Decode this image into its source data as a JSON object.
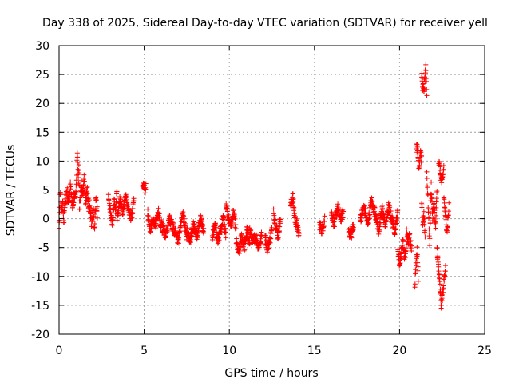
{
  "chart_data": {
    "type": "scatter",
    "title": "Day 338 of 2025, Sidereal Day-to-day VTEC variation (SDTVAR) for receiver yell",
    "xlabel": "GPS time / hours",
    "ylabel": "SDTVAR / TECUs",
    "xlim": [
      0,
      25
    ],
    "ylim": [
      -20,
      30
    ],
    "xticks": [
      0,
      5,
      10,
      15,
      20,
      25
    ],
    "yticks": [
      -20,
      -15,
      -10,
      -5,
      0,
      5,
      10,
      15,
      20,
      25,
      30
    ],
    "grid": true,
    "marker": "+",
    "color": "#ff0000",
    "segments": [
      {
        "x0": 0.0,
        "x1": 0.35,
        "y": [
          -2,
          5,
          1,
          3,
          -1,
          4
        ]
      },
      {
        "x0": 0.35,
        "x1": 1.0,
        "y": [
          2,
          5,
          3,
          6,
          2,
          4,
          5
        ]
      },
      {
        "x0": 1.0,
        "x1": 1.2,
        "y": [
          4,
          8,
          12,
          9,
          6,
          10,
          3
        ]
      },
      {
        "x0": 1.2,
        "x1": 1.75,
        "y": [
          2,
          6,
          4,
          7,
          3,
          5,
          2
        ]
      },
      {
        "x0": 1.75,
        "x1": 2.25,
        "y": [
          3,
          1,
          -1,
          2,
          -2,
          4,
          1
        ]
      },
      {
        "x0": 2.9,
        "x1": 3.4,
        "y": [
          4,
          2,
          0,
          -1,
          3,
          1,
          5
        ]
      },
      {
        "x0": 3.4,
        "x1": 4.4,
        "y": [
          0,
          3,
          1,
          4,
          2,
          0,
          3
        ]
      },
      {
        "x0": 4.9,
        "x1": 5.1,
        "y": [
          5,
          6,
          4.5,
          5.5
        ]
      },
      {
        "x0": 5.2,
        "x1": 6.0,
        "y": [
          1,
          -2,
          0,
          -1,
          1,
          -2
        ]
      },
      {
        "x0": 6.0,
        "x1": 7.5,
        "y": [
          -1,
          -3,
          0,
          -2,
          -4,
          1,
          -3
        ]
      },
      {
        "x0": 7.5,
        "x1": 8.5,
        "y": [
          -2,
          -4,
          -1,
          -3,
          0,
          -2
        ]
      },
      {
        "x0": 9.0,
        "x1": 9.8,
        "y": [
          -3,
          -1,
          -4,
          -2,
          0,
          -3
        ]
      },
      {
        "x0": 9.8,
        "x1": 10.4,
        "y": [
          2,
          0,
          -1,
          1,
          -2
        ]
      },
      {
        "x0": 10.4,
        "x1": 11.2,
        "y": [
          -4,
          -6,
          -3,
          -5,
          -2,
          -4
        ]
      },
      {
        "x0": 11.2,
        "x1": 11.9,
        "y": [
          -2,
          -4,
          -3,
          -5,
          -3
        ]
      },
      {
        "x0": 12.1,
        "x1": 12.5,
        "y": [
          -3,
          -5,
          -4,
          -2
        ]
      },
      {
        "x0": 12.6,
        "x1": 13.0,
        "y": [
          1,
          -1,
          -3,
          0
        ]
      },
      {
        "x0": 13.6,
        "x1": 14.1,
        "y": [
          2,
          4,
          0,
          -1,
          -3
        ]
      },
      {
        "x0": 15.3,
        "x1": 15.6,
        "y": [
          -1,
          -2,
          0
        ]
      },
      {
        "x0": 16.0,
        "x1": 16.7,
        "y": [
          1,
          -1,
          2,
          0,
          1
        ]
      },
      {
        "x0": 17.0,
        "x1": 17.3,
        "y": [
          -2,
          -3,
          -1
        ]
      },
      {
        "x0": 17.7,
        "x1": 19.0,
        "y": [
          0,
          2,
          -1,
          3,
          1,
          -2,
          2
        ]
      },
      {
        "x0": 19.0,
        "x1": 19.9,
        "y": [
          1,
          -1,
          2,
          0,
          -2,
          1
        ]
      },
      {
        "x0": 19.9,
        "x1": 20.4,
        "y": [
          -5,
          -8,
          -6,
          -4,
          -7,
          -5
        ]
      },
      {
        "x0": 20.4,
        "x1": 20.7,
        "y": [
          -2,
          -4,
          -3,
          -5
        ]
      },
      {
        "x0": 20.9,
        "x1": 21.1,
        "y": [
          -11,
          -8,
          -5,
          -10
        ]
      },
      {
        "x0": 21.0,
        "x1": 21.3,
        "y": [
          13,
          11,
          9,
          12,
          10
        ]
      },
      {
        "x0": 21.3,
        "x1": 21.6,
        "y": [
          25,
          23,
          22,
          24,
          26,
          21
        ]
      },
      {
        "x0": 21.3,
        "x1": 21.5,
        "y": [
          3,
          -1,
          1,
          -3
        ]
      },
      {
        "x0": 21.6,
        "x1": 22.2,
        "y": [
          8,
          2,
          -4,
          6,
          0,
          3,
          -2,
          5
        ]
      },
      {
        "x0": 22.2,
        "x1": 22.7,
        "y": [
          -5,
          -10,
          -15,
          -12,
          -8
        ]
      },
      {
        "x0": 22.3,
        "x1": 22.6,
        "y": [
          10,
          8,
          6,
          9
        ]
      },
      {
        "x0": 22.6,
        "x1": 22.9,
        "y": [
          4,
          0,
          -2,
          2
        ]
      }
    ]
  }
}
